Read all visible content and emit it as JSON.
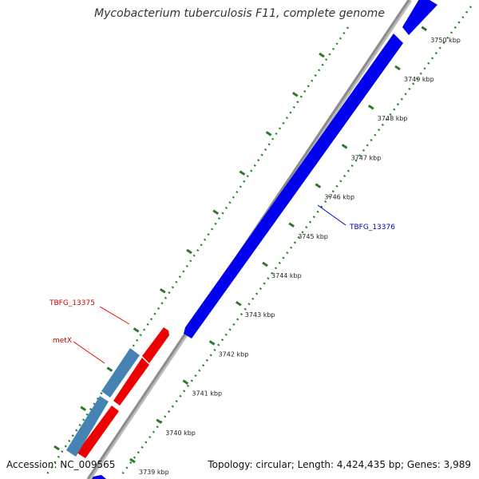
{
  "title": "Mycobacterium tuberculosis F11, complete genome",
  "footer": {
    "accession": "Accession: NC_009565",
    "summary": "Topology: circular; Length: 4,424,435 bp; Genes: 3,989"
  },
  "ticks": [
    "3739 kbp",
    "3740 kbp",
    "3741 kbp",
    "3742 kbp",
    "3743 kbp",
    "3744 kbp",
    "3745 kbp",
    "3746 kbp",
    "3747 kbp",
    "3748 kbp",
    "3749 kbp",
    "3750 kbp"
  ],
  "labels": [
    {
      "name": "TBFG_13375",
      "color": "#cc0000"
    },
    {
      "name": "metX",
      "color": "#cc0000"
    },
    {
      "name": "TBFG_13376",
      "color": "#0000aa"
    }
  ],
  "colors": {
    "forward_gene": "#0000ee",
    "reverse_gene": "#ee0000",
    "other_gene": "#4682b4",
    "backbone": "#8c8c8c",
    "tick_marks": "#2a7a2a",
    "dots": "#1e8a1e"
  }
}
